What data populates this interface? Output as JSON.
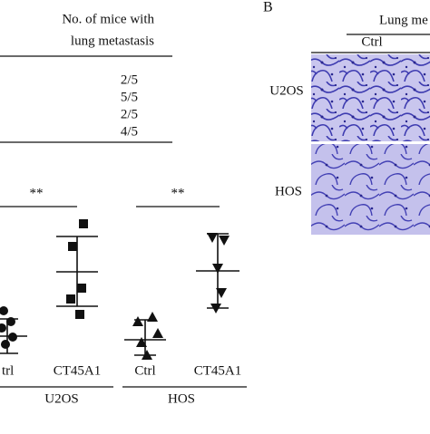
{
  "panel_a_table": {
    "header": [
      "No. of mice with",
      "lung metastasis"
    ],
    "rows": [
      "2/5",
      "5/5",
      "2/5",
      "4/5"
    ]
  },
  "panel_a_plot": {
    "significance": [
      "**",
      "**"
    ],
    "x_labels": [
      "trl",
      "CT45A1",
      "Ctrl",
      "CT45A1"
    ],
    "groups": [
      "U2OS",
      "HOS"
    ]
  },
  "panel_b": {
    "label": "B",
    "title": "Lung me",
    "column": "Ctrl",
    "rows": [
      "U2OS",
      "HOS"
    ]
  }
}
